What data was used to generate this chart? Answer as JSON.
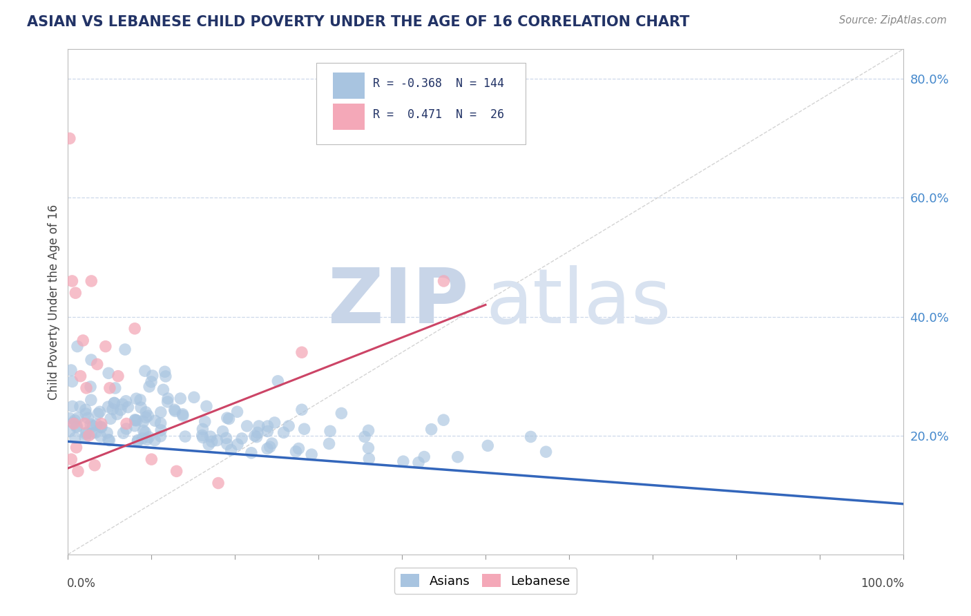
{
  "title": "ASIAN VS LEBANESE CHILD POVERTY UNDER THE AGE OF 16 CORRELATION CHART",
  "source": "Source: ZipAtlas.com",
  "ylabel": "Child Poverty Under the Age of 16",
  "asian_R": -0.368,
  "asian_N": 144,
  "lebanese_R": 0.471,
  "lebanese_N": 26,
  "asian_color": "#a8c4e0",
  "lebanese_color": "#f4a8b8",
  "asian_trend_color": "#3366bb",
  "lebanese_trend_color": "#cc4466",
  "background_color": "#ffffff",
  "grid_color": "#c8d4e8",
  "ylim_max": 0.85,
  "xlim_max": 1.0,
  "yticks": [
    0.2,
    0.4,
    0.6,
    0.8
  ],
  "ytick_labels": [
    "20.0%",
    "40.0%",
    "60.0%",
    "80.0%"
  ]
}
